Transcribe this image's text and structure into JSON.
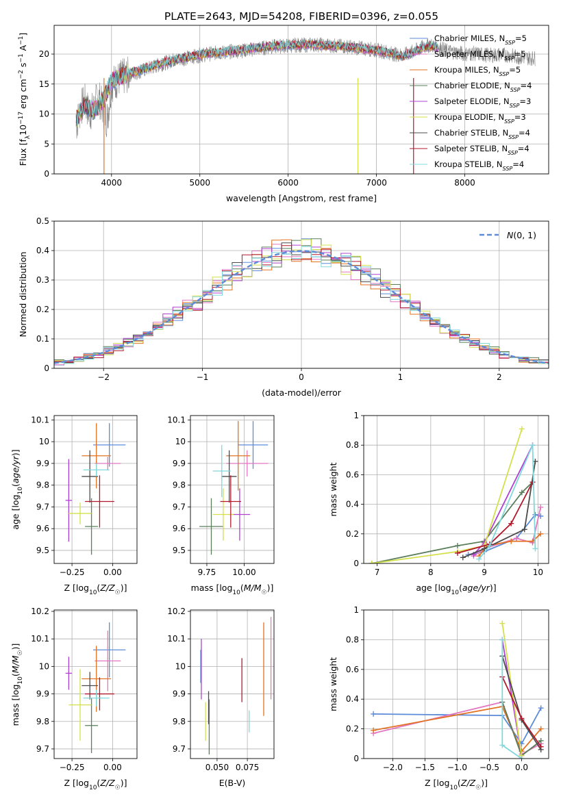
{
  "figure": {
    "title": "PLATE=2643, MJD=54208, FIBERID=0396, z=0.055"
  },
  "colors": {
    "data": "#7f7f7f",
    "normal": "#5b8bd9",
    "grid": "#b0b0b0"
  },
  "chart_data": [
    {
      "id": "spectrum",
      "type": "line",
      "xlabel": "wavelength [Angstrom, rest frame]",
      "ylabel": "Flux [f_λ 10^-17 erg cm^-2 s^-1 A^-1]",
      "xlim": [
        3350,
        8950
      ],
      "ylim": [
        0,
        24.8
      ],
      "xticks": [
        4000,
        5000,
        6000,
        7000,
        8000
      ],
      "yticks": [
        0,
        5,
        10,
        15,
        20
      ],
      "legend_position": "top-right",
      "observed": {
        "color": "#7f7f7f",
        "x": [
          3600,
          3650,
          3700,
          3750,
          3800,
          3850,
          3900,
          3950,
          4000,
          4100,
          4200,
          4300,
          4400,
          4500,
          4600,
          4700,
          4800,
          4900,
          5000,
          5100,
          5200,
          5300,
          5400,
          5500,
          5600,
          5700,
          5800,
          5900,
          6000,
          6100,
          6200,
          6300,
          6400,
          6500,
          6600,
          6700,
          6800,
          6900,
          7000,
          7100,
          7200,
          7300,
          7400,
          7500,
          7600,
          7700,
          7800,
          7900,
          8000,
          8100,
          8200,
          8300,
          8400,
          8500,
          8600,
          8700,
          8800
        ],
        "y": [
          8,
          11,
          12,
          10,
          11,
          13,
          11,
          9,
          15,
          16,
          16.5,
          17,
          17.5,
          18,
          18.5,
          19,
          19.2,
          19.5,
          19.8,
          20,
          20.2,
          20.3,
          20.5,
          20.6,
          20.8,
          21,
          21.2,
          21.3,
          21.4,
          21.5,
          21.5,
          21.6,
          21.5,
          21.4,
          21.3,
          21.2,
          21,
          20.9,
          20.6,
          20.4,
          20,
          19.8,
          20.3,
          21,
          21.5,
          21.2,
          20.5,
          20.3,
          20,
          20.1,
          19.9,
          19.8,
          19.9,
          19.8,
          19.5,
          19.4,
          19.3
        ]
      },
      "series": [
        {
          "name": "Chabrier MILES, N_SSP=5",
          "color": "#5b8bd9"
        },
        {
          "name": "Salpeter MILES, N_SSP=5",
          "color": "#e377c2"
        },
        {
          "name": "Kroupa MILES, N_SSP=5",
          "color": "#e37222"
        },
        {
          "name": "Chabrier ELODIE, N_SSP=4",
          "color": "#5a7d5a"
        },
        {
          "name": "Salpeter ELODIE, N_SSP=3",
          "color": "#b040d0"
        },
        {
          "name": "Kroupa ELODIE, N_SSP=3",
          "color": "#d4e04a"
        },
        {
          "name": "Chabrier STELIB, N_SSP=4",
          "color": "#4a4a4a"
        },
        {
          "name": "Salpeter STELIB, N_SSP=4",
          "color": "#b2182b"
        },
        {
          "name": "Kroupa STELIB, N_SSP=4",
          "color": "#80d8dc"
        }
      ],
      "model_x": [
        3600,
        3700,
        3800,
        3900,
        4000,
        4100,
        4200,
        4300,
        4400,
        4500,
        4600,
        4700,
        4800,
        4900,
        5000,
        5100,
        5200,
        5300,
        5400,
        5500,
        5600,
        5700,
        5800,
        5900,
        6000,
        6100,
        6200,
        6300,
        6400,
        6500,
        6600,
        6700,
        6800,
        6900,
        7000,
        7100,
        7200,
        7300,
        7400,
        7500,
        7600,
        7700
      ],
      "model_y": [
        9,
        11.5,
        10.5,
        12,
        15.5,
        16.2,
        16.8,
        17.2,
        17.7,
        18.2,
        18.6,
        19,
        19.3,
        19.6,
        19.9,
        20.1,
        20.3,
        20.4,
        20.6,
        20.8,
        21,
        21.1,
        21.3,
        21.4,
        21.5,
        21.5,
        21.6,
        21.6,
        21.5,
        21.4,
        21.3,
        21.1,
        21,
        20.8,
        20.6,
        20.3,
        20,
        19.7,
        20.2,
        20.9,
        21.4,
        21.1
      ],
      "spikes": [
        {
          "x": 3915,
          "color": "#e37222"
        },
        {
          "x": 6790,
          "color": "#d4e04a"
        },
        {
          "x": 7420,
          "color": "#b2182b"
        }
      ]
    },
    {
      "id": "residual-histogram",
      "type": "histogram",
      "xlabel": "(data-model)/error",
      "ylabel": "Normed distribution",
      "xlim": [
        -2.5,
        2.5
      ],
      "ylim": [
        0,
        0.5
      ],
      "xticks": [
        -2,
        -1,
        0,
        1,
        2
      ],
      "yticks": [
        0.0,
        0.1,
        0.2,
        0.3,
        0.4,
        0.5
      ],
      "bin_width": 0.1,
      "legend": {
        "label": "N(0,1)",
        "position": "top-right"
      },
      "normal_curve": {
        "mean": 0,
        "sigma": 1
      }
    },
    {
      "id": "age-vs-z",
      "type": "scatter",
      "xlabel": "Z [log10(Z/Z☉)]",
      "ylabel": "age  [log10(age/yr)]",
      "xlim": [
        -0.36,
        0.15
      ],
      "ylim": [
        9.44,
        10.12
      ],
      "xticks": [
        -0.25,
        0.0
      ],
      "xtick_labels": [
        "−0.25",
        "0.00"
      ],
      "yticks": [
        9.5,
        9.6,
        9.7,
        9.8,
        9.9,
        10.0,
        10.1
      ],
      "points": [
        {
          "color": "#5b8bd9",
          "x": -0.02,
          "xerr": 0.1,
          "y": 9.985,
          "yerr": 0.1
        },
        {
          "color": "#e377c2",
          "x": -0.03,
          "xerr": 0.08,
          "y": 9.9,
          "yerr": 0.03
        },
        {
          "color": "#e37222",
          "x": -0.1,
          "xerr": 0.09,
          "y": 9.935,
          "yerr": 0.15
        },
        {
          "color": "#5a7d5a",
          "x": -0.13,
          "xerr": 0.04,
          "y": 9.61,
          "yerr": 0.13
        },
        {
          "color": "#b040d0",
          "x": -0.27,
          "xerr": 0.02,
          "y": 9.73,
          "yerr": 0.19
        },
        {
          "color": "#d4e04a",
          "x": -0.2,
          "xerr": 0.07,
          "y": 9.67,
          "yerr": 0.05
        },
        {
          "color": "#4a4a4a",
          "x": -0.14,
          "xerr": 0.05,
          "y": 9.84,
          "yerr": 0.12
        },
        {
          "color": "#b2182b",
          "x": -0.08,
          "xerr": 0.09,
          "y": 9.725,
          "yerr": 0.12
        },
        {
          "color": "#80d8dc",
          "x": -0.1,
          "xerr": 0.08,
          "y": 9.87,
          "yerr": 0.03
        }
      ]
    },
    {
      "id": "age-vs-mass",
      "type": "scatter",
      "xlabel": "mass [log10(M/M☉)]",
      "ylabel": "",
      "xlim": [
        9.64,
        10.2
      ],
      "ylim": [
        9.44,
        10.12
      ],
      "xticks": [
        9.75,
        10.0
      ],
      "xtick_labels": [
        "9.75",
        "10.00"
      ],
      "yticks": [
        9.5,
        9.6,
        9.7,
        9.8,
        9.9,
        10.0,
        10.1
      ],
      "points": [
        {
          "color": "#5b8bd9",
          "x": 10.06,
          "xerr": 0.1,
          "y": 9.985,
          "yerr": 0.11
        },
        {
          "color": "#e377c2",
          "x": 10.02,
          "xerr": 0.14,
          "y": 9.9,
          "yerr": 0.06
        },
        {
          "color": "#e37222",
          "x": 9.96,
          "xerr": 0.08,
          "y": 9.935,
          "yerr": 0.16
        },
        {
          "color": "#5a7d5a",
          "x": 9.78,
          "xerr": 0.08,
          "y": 9.61,
          "yerr": 0.13
        },
        {
          "color": "#b040d0",
          "x": 9.97,
          "xerr": 0.07,
          "y": 9.665,
          "yerr": 0.12
        },
        {
          "color": "#d4e04a",
          "x": 9.86,
          "xerr": 0.07,
          "y": 9.665,
          "yerr": 0.12
        },
        {
          "color": "#4a4a4a",
          "x": 9.9,
          "xerr": 0.05,
          "y": 9.84,
          "yerr": 0.12
        },
        {
          "color": "#b2182b",
          "x": 9.91,
          "xerr": 0.07,
          "y": 9.725,
          "yerr": 0.12
        },
        {
          "color": "#80d8dc",
          "x": 9.85,
          "xerr": 0.06,
          "y": 9.865,
          "yerr": 0.12
        }
      ]
    },
    {
      "id": "mass-weight-vs-age",
      "type": "line",
      "xlabel": "age  [log10(age/yr)]",
      "ylabel": "mass weight",
      "xlim": [
        6.75,
        10.2
      ],
      "ylim": [
        0,
        1
      ],
      "xticks": [
        7,
        8,
        9,
        10
      ],
      "yticks": [
        0.0,
        0.2,
        0.4,
        0.6,
        0.8,
        1.0
      ],
      "series": [
        {
          "color": "#5b8bd9",
          "x": [
            8.7,
            9.0,
            9.6,
            9.95,
            10.05
          ],
          "y": [
            0.06,
            0.08,
            0.17,
            0.33,
            0.32
          ]
        },
        {
          "color": "#e377c2",
          "x": [
            8.8,
            9.0,
            9.6,
            9.9,
            10.05
          ],
          "y": [
            0.05,
            0.1,
            0.17,
            0.14,
            0.38
          ]
        },
        {
          "color": "#e37222",
          "x": [
            8.9,
            9.05,
            9.5,
            9.9,
            10.05
          ],
          "y": [
            0.05,
            0.12,
            0.15,
            0.15,
            0.2
          ]
        },
        {
          "color": "#5a7d5a",
          "x": [
            6.9,
            8.5,
            9.0,
            9.7,
            9.9
          ],
          "y": [
            0.0,
            0.12,
            0.15,
            0.48,
            0.55
          ]
        },
        {
          "color": "#b040d0",
          "x": [
            8.8,
            9.0,
            9.9
          ],
          "y": [
            0.06,
            0.14,
            0.8
          ]
        },
        {
          "color": "#d4e04a",
          "x": [
            6.9,
            8.5,
            9.0,
            9.7
          ],
          "y": [
            0.0,
            0.08,
            0.12,
            0.91
          ]
        },
        {
          "color": "#4a4a4a",
          "x": [
            8.6,
            9.0,
            9.75,
            9.95
          ],
          "y": [
            0.04,
            0.1,
            0.23,
            0.69
          ]
        },
        {
          "color": "#b2182b",
          "x": [
            8.5,
            9.1,
            9.5,
            9.9
          ],
          "y": [
            0.07,
            0.13,
            0.27,
            0.55
          ]
        },
        {
          "color": "#80d8dc",
          "x": [
            8.9,
            9.1,
            9.9,
            9.95
          ],
          "y": [
            0.03,
            0.12,
            0.8,
            0.1
          ]
        }
      ]
    },
    {
      "id": "mass-vs-z",
      "type": "scatter",
      "xlabel": "Z [log10(Z/Z☉)]",
      "ylabel": "mass [log10(M/M☉)]",
      "xlim": [
        -0.36,
        0.15
      ],
      "ylim": [
        9.665,
        10.205
      ],
      "xticks": [
        -0.25,
        0.0
      ],
      "xtick_labels": [
        "−0.25",
        "0.00"
      ],
      "yticks": [
        9.7,
        9.8,
        9.9,
        10.0,
        10.1,
        10.2
      ],
      "points": [
        {
          "color": "#5b8bd9",
          "x": -0.02,
          "xerr": 0.1,
          "y": 10.06,
          "yerr": 0.1
        },
        {
          "color": "#e377c2",
          "x": -0.03,
          "xerr": 0.08,
          "y": 10.02,
          "yerr": 0.11
        },
        {
          "color": "#e37222",
          "x": -0.1,
          "xerr": 0.09,
          "y": 9.955,
          "yerr": 0.12
        },
        {
          "color": "#5a7d5a",
          "x": -0.13,
          "xerr": 0.04,
          "y": 9.785,
          "yerr": 0.1
        },
        {
          "color": "#b040d0",
          "x": -0.27,
          "xerr": 0.02,
          "y": 9.975,
          "yerr": 0.06
        },
        {
          "color": "#d4e04a",
          "x": -0.2,
          "xerr": 0.07,
          "y": 9.86,
          "yerr": 0.13
        },
        {
          "color": "#4a4a4a",
          "x": -0.14,
          "xerr": 0.05,
          "y": 9.93,
          "yerr": 0.05
        },
        {
          "color": "#b2182b",
          "x": -0.08,
          "xerr": 0.09,
          "y": 9.9,
          "yerr": 0.06
        },
        {
          "color": "#80d8dc",
          "x": -0.1,
          "xerr": 0.08,
          "y": 9.885,
          "yerr": 0.03
        }
      ]
    },
    {
      "id": "mass-vs-ebv",
      "type": "scatter",
      "xlabel": "E(B-V)",
      "ylabel": "",
      "xlim": [
        0.028,
        0.097
      ],
      "ylim": [
        9.665,
        10.205
      ],
      "xticks": [
        0.05,
        0.075
      ],
      "xtick_labels": [
        "0.050",
        "0.075"
      ],
      "yticks": [
        9.7,
        9.8,
        9.9,
        10.0,
        10.1,
        10.2
      ],
      "points": [
        {
          "color": "#5b8bd9",
          "x": 0.0365,
          "y": 10.0,
          "yerr": 0.06
        },
        {
          "color": "#e377c2",
          "x": 0.0945,
          "y": 10.03,
          "yerr": 0.15
        },
        {
          "color": "#e37222",
          "x": 0.0885,
          "y": 9.99,
          "yerr": 0.17
        },
        {
          "color": "#5a7d5a",
          "x": 0.0435,
          "y": 9.78,
          "yerr": 0.1
        },
        {
          "color": "#b040d0",
          "x": 0.037,
          "y": 9.99,
          "yerr": 0.11
        },
        {
          "color": "#d4e04a",
          "x": 0.0405,
          "y": 9.8,
          "yerr": 0.07
        },
        {
          "color": "#4a4a4a",
          "x": 0.043,
          "y": 9.85,
          "yerr": 0.06
        },
        {
          "color": "#b2182b",
          "x": 0.0705,
          "y": 9.95,
          "yerr": 0.08
        },
        {
          "color": "#80d8dc",
          "x": 0.0765,
          "y": 9.8,
          "yerr": 0.04
        }
      ]
    },
    {
      "id": "mass-weight-vs-z",
      "type": "line",
      "xlabel": "Z [log10(Z/Z☉)]",
      "ylabel": "mass weight",
      "xlim": [
        -2.45,
        0.42
      ],
      "ylim": [
        0,
        1
      ],
      "xticks": [
        -2.0,
        -1.5,
        -1.0,
        -0.5,
        0.0
      ],
      "xtick_labels": [
        "−2.0",
        "−1.5",
        "−1.0",
        "−0.5",
        "0.0"
      ],
      "yticks": [
        0.0,
        0.2,
        0.4,
        0.6,
        0.8,
        1.0
      ],
      "series": [
        {
          "color": "#5b8bd9",
          "x": [
            -2.3,
            -0.3,
            0.0,
            0.3
          ],
          "y": [
            0.3,
            0.29,
            0.1,
            0.34
          ]
        },
        {
          "color": "#e377c2",
          "x": [
            -2.3,
            -0.3,
            0.0,
            0.3
          ],
          "y": [
            0.17,
            0.38,
            0.03,
            0.1
          ]
        },
        {
          "color": "#e37222",
          "x": [
            -2.3,
            -0.3,
            0.0,
            0.3
          ],
          "y": [
            0.19,
            0.35,
            0.05,
            0.2
          ]
        },
        {
          "color": "#5a7d5a",
          "x": [
            -0.3,
            0.0,
            0.3
          ],
          "y": [
            0.38,
            0.02,
            0.12
          ]
        },
        {
          "color": "#b040d0",
          "x": [
            -0.3,
            0.0
          ],
          "y": [
            0.8,
            0.02
          ]
        },
        {
          "color": "#d4e04a",
          "x": [
            -0.3,
            0.0
          ],
          "y": [
            0.91,
            0.02
          ]
        },
        {
          "color": "#4a4a4a",
          "x": [
            -0.3,
            0.0,
            0.3
          ],
          "y": [
            0.69,
            0.26,
            0.06
          ]
        },
        {
          "color": "#b2182b",
          "x": [
            -0.3,
            0.0,
            0.3
          ],
          "y": [
            0.55,
            0.27,
            0.08
          ]
        },
        {
          "color": "#80d8dc",
          "x": [
            -0.3,
            -0.3,
            0.0
          ],
          "y": [
            0.8,
            0.09,
            0.0
          ]
        }
      ]
    }
  ]
}
